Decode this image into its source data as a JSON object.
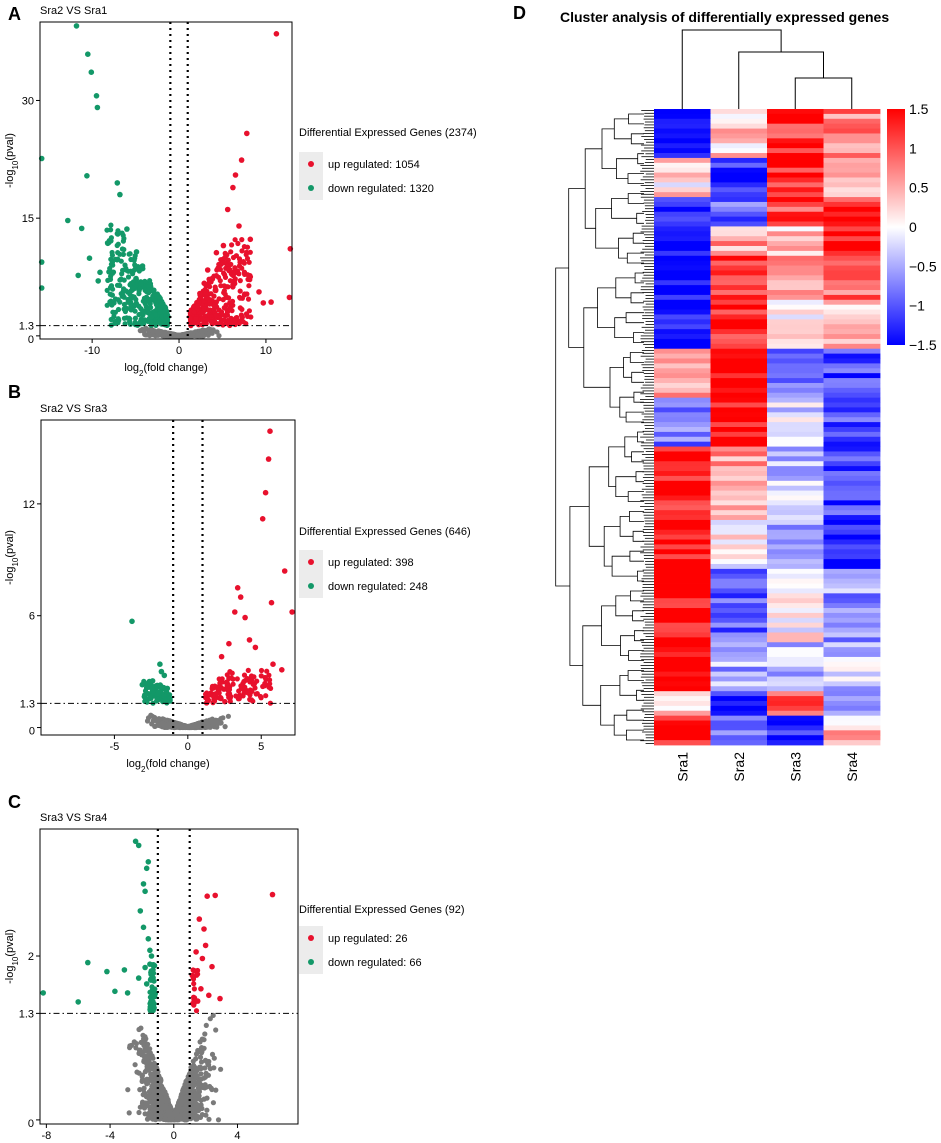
{
  "panels": {
    "A": {
      "letter": "A",
      "title": "Sra2 VS Sra1",
      "xlabel": "log2(fold change)",
      "ylabel": "-log10(pval)",
      "legend_title": "Differential Expressed Genes (2374)",
      "legend_up": "up regulated: 1054",
      "legend_down": "down regulated: 1320"
    },
    "B": {
      "letter": "B",
      "title": "Sra2 VS Sra3",
      "xlabel": "log2(fold change)",
      "ylabel": "-log10(pval)",
      "legend_title": "Differential Expressed Genes (646)",
      "legend_up": "up regulated: 398",
      "legend_down": "down regulated: 248"
    },
    "C": {
      "letter": "C",
      "title": "Sra3 VS Sra4",
      "xlabel": "log2(fold change)",
      "ylabel": "-log10(pval)",
      "legend_title": "Differential Expressed Genes (92)",
      "legend_up": "up regulated: 26",
      "legend_down": "down regulated: 66"
    },
    "D": {
      "letter": "D",
      "title": "Cluster analysis of differentially expressed genes"
    }
  },
  "chart_data": [
    {
      "id": "A",
      "type": "scatter",
      "subtype": "volcano",
      "title": "Sra2 VS Sra1",
      "xlabel": "log2(fold change)",
      "ylabel": "-log10(pval)",
      "xlim": [
        -16,
        13
      ],
      "ylim": [
        -0.4,
        40
      ],
      "xticks": [
        -10,
        0,
        10
      ],
      "yticks": [
        0,
        1.3,
        15,
        30
      ],
      "fc_threshold": 1,
      "p_threshold": 1.3,
      "colors": {
        "up": "#e8112d",
        "down": "#139868",
        "ns": "#7a7a7a"
      },
      "series": [
        {
          "name": "up regulated",
          "count": 1054,
          "points": [
            [
              11.2,
              38.5
            ],
            [
              7.8,
              25.8
            ],
            [
              7.2,
              22.4
            ],
            [
              6.5,
              20.5
            ],
            [
              6.2,
              18.9
            ],
            [
              5.6,
              16.1
            ],
            [
              8.2,
              12.3
            ],
            [
              6.9,
              14.0
            ],
            [
              9.7,
              4.2
            ],
            [
              10.6,
              4.3
            ],
            [
              12.7,
              4.9
            ],
            [
              12.8,
              11.1
            ],
            [
              9.2,
              5.6
            ],
            [
              4.3,
              10.6
            ],
            [
              5.1,
              11.5
            ],
            [
              3.3,
              8.4
            ],
            [
              3.8,
              7.3
            ],
            [
              2.9,
              6.7
            ],
            [
              4.6,
              9.1
            ],
            [
              2.4,
              5.4
            ]
          ]
        },
        {
          "name": "down regulated",
          "count": 1320,
          "points": [
            [
              -11.8,
              39.5
            ],
            [
              -10.5,
              35.9
            ],
            [
              -10.1,
              33.6
            ],
            [
              -9.5,
              30.6
            ],
            [
              -9.4,
              29.1
            ],
            [
              -10.6,
              20.4
            ],
            [
              -7.1,
              19.5
            ],
            [
              -6.8,
              18.0
            ],
            [
              -15.8,
              22.6
            ],
            [
              -12.8,
              14.7
            ],
            [
              -11.2,
              13.7
            ],
            [
              -10.3,
              9.9
            ],
            [
              -15.8,
              9.4
            ],
            [
              -15.8,
              6.1
            ],
            [
              -11.6,
              7.7
            ],
            [
              -9.1,
              8.1
            ],
            [
              -8.2,
              11.8
            ],
            [
              -9.3,
              7.0
            ],
            [
              -6.0,
              13.6
            ],
            [
              -4.9,
              10.7
            ],
            [
              -4.2,
              8.9
            ]
          ]
        }
      ]
    },
    {
      "id": "B",
      "type": "scatter",
      "subtype": "volcano",
      "title": "Sra2 VS Sra3",
      "xlabel": "log2(fold change)",
      "ylabel": "-log10(pval)",
      "xlim": [
        -10,
        7.3
      ],
      "ylim": [
        -0.4,
        16.5
      ],
      "xticks": [
        -5,
        0,
        5
      ],
      "yticks": [
        0,
        1.3,
        6,
        12
      ],
      "fc_threshold": 1,
      "p_threshold": 1.3,
      "colors": {
        "up": "#e8112d",
        "down": "#139868",
        "ns": "#7a7a7a"
      },
      "series": [
        {
          "name": "up regulated",
          "count": 398,
          "points": [
            [
              5.6,
              15.9
            ],
            [
              5.5,
              14.4
            ],
            [
              5.3,
              12.6
            ],
            [
              5.1,
              11.2
            ],
            [
              6.6,
              8.4
            ],
            [
              5.7,
              6.7
            ],
            [
              3.4,
              7.5
            ],
            [
              3.6,
              7.0
            ],
            [
              3.2,
              6.2
            ],
            [
              3.9,
              5.9
            ],
            [
              4.2,
              4.7
            ],
            [
              4.6,
              4.3
            ],
            [
              5.8,
              3.4
            ],
            [
              6.4,
              3.1
            ],
            [
              7.1,
              6.2
            ],
            [
              2.8,
              4.5
            ],
            [
              2.3,
              3.8
            ]
          ]
        },
        {
          "name": "down regulated",
          "count": 248,
          "points": [
            [
              -3.8,
              5.7
            ],
            [
              -1.9,
              3.4
            ],
            [
              -1.8,
              3.0
            ],
            [
              -1.6,
              2.8
            ],
            [
              -2.4,
              2.5
            ],
            [
              -3.1,
              2.3
            ],
            [
              -1.4,
              2.1
            ],
            [
              -2.0,
              1.9
            ]
          ]
        }
      ]
    },
    {
      "id": "C",
      "type": "scatter",
      "subtype": "volcano",
      "title": "Sra3 VS Sra4",
      "xlabel": "log2(fold change)",
      "ylabel": "-log10(pval)",
      "xlim": [
        -8.4,
        7.8
      ],
      "ylim": [
        -0.05,
        3.55
      ],
      "xticks": [
        -8,
        -4,
        0,
        4
      ],
      "yticks": [
        0,
        1.3,
        2
      ],
      "fc_threshold": 1,
      "p_threshold": 1.3,
      "colors": {
        "up": "#e8112d",
        "down": "#139868",
        "ns": "#7a7a7a"
      },
      "series": [
        {
          "name": "up regulated",
          "count": 26,
          "points": [
            [
              6.2,
              2.75
            ],
            [
              2.1,
              2.73
            ],
            [
              2.6,
              2.74
            ],
            [
              1.6,
              2.45
            ],
            [
              1.9,
              2.33
            ],
            [
              2.0,
              2.13
            ],
            [
              1.4,
              2.05
            ],
            [
              1.8,
              1.97
            ],
            [
              2.4,
              1.87
            ],
            [
              1.3,
              1.82
            ],
            [
              1.7,
              1.6
            ],
            [
              2.2,
              1.52
            ],
            [
              2.9,
              1.48
            ],
            [
              1.5,
              1.45
            ],
            [
              1.2,
              1.42
            ]
          ]
        },
        {
          "name": "down regulated",
          "count": 66,
          "points": [
            [
              -2.4,
              3.4
            ],
            [
              -2.2,
              3.35
            ],
            [
              -1.6,
              3.15
            ],
            [
              -1.7,
              3.07
            ],
            [
              -1.9,
              2.88
            ],
            [
              -1.8,
              2.79
            ],
            [
              -2.1,
              2.55
            ],
            [
              -1.9,
              2.35
            ],
            [
              -1.6,
              2.21
            ],
            [
              -1.5,
              2.07
            ],
            [
              -1.4,
              2.0
            ],
            [
              -1.5,
              1.9
            ],
            [
              -1.8,
              1.86
            ],
            [
              -5.4,
              1.92
            ],
            [
              -4.2,
              1.81
            ],
            [
              -3.1,
              1.83
            ],
            [
              -2.2,
              1.73
            ],
            [
              -1.7,
              1.66
            ],
            [
              -2.9,
              1.55
            ],
            [
              -3.7,
              1.57
            ],
            [
              -6.0,
              1.44
            ],
            [
              -8.2,
              1.55
            ],
            [
              -1.4,
              1.46
            ],
            [
              -1.3,
              1.43
            ]
          ]
        }
      ]
    },
    {
      "id": "D",
      "type": "heatmap",
      "title": "Cluster analysis of differentially expressed genes",
      "columns": [
        "Sra1",
        "Sra2",
        "Sra3",
        "Sra4"
      ],
      "color_scale": {
        "min": -1.5,
        "max": 1.5,
        "low": "#0000ff",
        "mid": "#ffffff",
        "high": "#ff0000"
      },
      "colorbar_ticks": [
        1.5,
        1,
        0.5,
        0,
        -0.5,
        -1,
        -1.5
      ],
      "row_blocks": [
        {
          "rows": 10,
          "values": [
            -1.5,
            0.3,
            1.2,
            0.7
          ]
        },
        {
          "rows": 8,
          "values": [
            0.2,
            -1.2,
            1.3,
            0.5
          ]
        },
        {
          "rows": 6,
          "values": [
            -1.4,
            -0.9,
            1.1,
            1.3
          ]
        },
        {
          "rows": 5,
          "values": [
            -1.5,
            0.6,
            0.4,
            1.5
          ]
        },
        {
          "rows": 10,
          "values": [
            -1.5,
            1.1,
            0.5,
            0.9
          ]
        },
        {
          "rows": 10,
          "values": [
            -1.5,
            1.3,
            0.2,
            0.3
          ]
        },
        {
          "rows": 10,
          "values": [
            0.4,
            1.5,
            -0.8,
            -1.1
          ]
        },
        {
          "rows": 10,
          "values": [
            -0.8,
            1.5,
            -0.2,
            -1.0
          ]
        },
        {
          "rows": 15,
          "values": [
            1.4,
            0.6,
            -0.3,
            -1.1
          ]
        },
        {
          "rows": 10,
          "values": [
            1.5,
            0.0,
            -0.7,
            -1.4
          ]
        },
        {
          "rows": 15,
          "values": [
            1.5,
            -0.9,
            0.1,
            -0.6
          ]
        },
        {
          "rows": 10,
          "values": [
            1.5,
            -0.5,
            -0.4,
            -0.3
          ]
        },
        {
          "rows": 5,
          "values": [
            0.3,
            -1.4,
            0.9,
            -0.5
          ]
        },
        {
          "rows": 6,
          "values": [
            1.4,
            -0.6,
            -1.3,
            0.4
          ]
        }
      ]
    }
  ]
}
